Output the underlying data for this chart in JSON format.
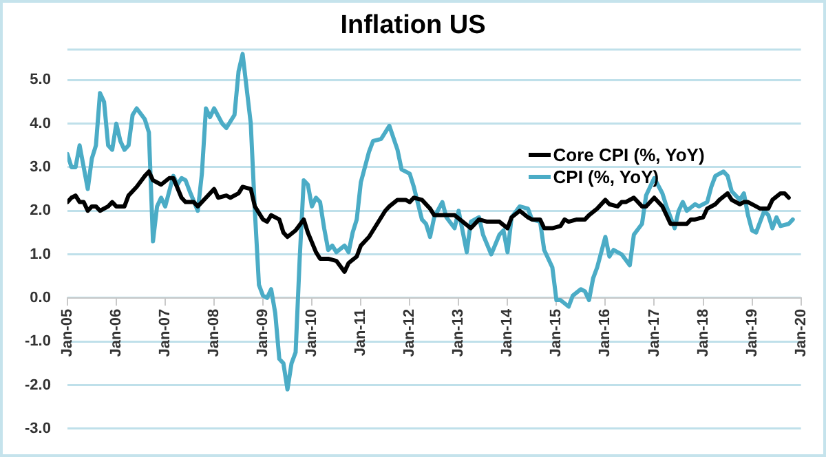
{
  "chart_data": {
    "type": "line",
    "title": "Inflation US",
    "xlim": [
      "2005-01",
      "2020-01"
    ],
    "xticks": [
      {
        "value": "2005-01",
        "label": "Jan-05"
      },
      {
        "value": "2006-01",
        "label": "Jan-06"
      },
      {
        "value": "2007-01",
        "label": "Jan-07"
      },
      {
        "value": "2008-01",
        "label": "Jan-08"
      },
      {
        "value": "2009-01",
        "label": "Jan-09"
      },
      {
        "value": "2010-01",
        "label": "Jan-10"
      },
      {
        "value": "2011-01",
        "label": "Jan-11"
      },
      {
        "value": "2012-01",
        "label": "Jan-12"
      },
      {
        "value": "2013-01",
        "label": "Jan-13"
      },
      {
        "value": "2014-01",
        "label": "Jan-14"
      },
      {
        "value": "2015-01",
        "label": "Jan-15"
      },
      {
        "value": "2016-01",
        "label": "Jan-16"
      },
      {
        "value": "2017-01",
        "label": "Jan-17"
      },
      {
        "value": "2018-01",
        "label": "Jan-18"
      },
      {
        "value": "2019-01",
        "label": "Jan-19"
      },
      {
        "value": "2020-01",
        "label": "Jan-20"
      }
    ],
    "ylim": [
      -3,
      5.7
    ],
    "yticks": [
      {
        "value": -3,
        "label": "-3.0"
      },
      {
        "value": -2,
        "label": "-2.0"
      },
      {
        "value": -1,
        "label": "-1.0"
      },
      {
        "value": 0,
        "label": "0.0"
      },
      {
        "value": 1,
        "label": "1.0"
      },
      {
        "value": 2,
        "label": "2.0"
      },
      {
        "value": 3,
        "label": "3.0"
      },
      {
        "value": 4,
        "label": "4.0"
      },
      {
        "value": 5,
        "label": "5.0"
      }
    ],
    "grid": "y",
    "legend": "top right",
    "marker": "none",
    "line_style": "solid",
    "series": [
      {
        "name": "Core CPI (%, YoY)",
        "color": "#000000",
        "x": [
          "2005-01",
          "2005-02",
          "2005-03",
          "2005-04",
          "2005-05",
          "2005-06",
          "2005-07",
          "2005-08",
          "2005-09",
          "2005-11",
          "2005-12",
          "2006-01",
          "2006-03",
          "2006-04",
          "2006-06",
          "2006-08",
          "2006-09",
          "2006-10",
          "2006-12",
          "2007-02",
          "2007-03",
          "2007-05",
          "2007-06",
          "2007-08",
          "2007-09",
          "2007-11",
          "2008-01",
          "2008-02",
          "2008-04",
          "2008-05",
          "2008-07",
          "2008-08",
          "2008-10",
          "2008-11",
          "2009-01",
          "2009-02",
          "2009-03",
          "2009-05",
          "2009-06",
          "2009-07",
          "2009-09",
          "2009-11",
          "2009-12",
          "2010-02",
          "2010-03",
          "2010-05",
          "2010-07",
          "2010-09",
          "2010-10",
          "2010-12",
          "2011-01",
          "2011-03",
          "2011-05",
          "2011-07",
          "2011-08",
          "2011-10",
          "2011-12",
          "2012-01",
          "2012-02",
          "2012-04",
          "2012-06",
          "2012-07",
          "2012-10",
          "2012-12",
          "2013-02",
          "2013-04",
          "2013-06",
          "2013-08",
          "2013-11",
          "2014-01",
          "2014-02",
          "2014-04",
          "2014-06",
          "2014-07",
          "2014-09",
          "2014-10",
          "2014-12",
          "2015-02",
          "2015-03",
          "2015-04",
          "2015-06",
          "2015-08",
          "2015-09",
          "2015-11",
          "2016-01",
          "2016-02",
          "2016-04",
          "2016-05",
          "2016-06",
          "2016-08",
          "2016-10",
          "2016-11",
          "2017-01",
          "2017-03",
          "2017-04",
          "2017-05",
          "2017-07",
          "2017-09",
          "2017-10",
          "2017-11",
          "2018-01",
          "2018-02",
          "2018-04",
          "2018-05",
          "2018-07",
          "2018-08",
          "2018-10",
          "2018-11",
          "2018-12",
          "2019-02",
          "2019-03",
          "2019-05",
          "2019-06",
          "2019-08",
          "2019-09",
          "2019-10"
        ],
        "values": [
          2.2,
          2.3,
          2.35,
          2.2,
          2.2,
          2.0,
          2.1,
          2.1,
          2.0,
          2.1,
          2.2,
          2.1,
          2.1,
          2.35,
          2.55,
          2.8,
          2.9,
          2.7,
          2.6,
          2.75,
          2.75,
          2.3,
          2.2,
          2.2,
          2.1,
          2.3,
          2.5,
          2.3,
          2.35,
          2.3,
          2.4,
          2.55,
          2.5,
          2.1,
          1.8,
          1.75,
          1.9,
          1.8,
          1.5,
          1.4,
          1.55,
          1.8,
          1.5,
          1.05,
          0.9,
          0.9,
          0.85,
          0.6,
          0.8,
          0.95,
          1.2,
          1.4,
          1.7,
          2.0,
          2.1,
          2.25,
          2.25,
          2.2,
          2.3,
          2.25,
          2.05,
          1.9,
          1.9,
          1.9,
          1.75,
          1.6,
          1.8,
          1.75,
          1.75,
          1.6,
          1.85,
          2.0,
          1.85,
          1.8,
          1.8,
          1.6,
          1.6,
          1.65,
          1.8,
          1.75,
          1.8,
          1.8,
          1.9,
          2.05,
          2.25,
          2.15,
          2.1,
          2.2,
          2.2,
          2.3,
          2.1,
          2.1,
          2.3,
          2.1,
          1.9,
          1.7,
          1.7,
          1.7,
          1.8,
          1.8,
          1.85,
          2.05,
          2.15,
          2.25,
          2.4,
          2.25,
          2.15,
          2.2,
          2.2,
          2.1,
          2.05,
          2.05,
          2.25,
          2.4,
          2.4,
          2.3
        ]
      },
      {
        "name": "CPI (%, YoY)",
        "color": "#4bacc6",
        "x": [
          "2005-01",
          "2005-02",
          "2005-03",
          "2005-04",
          "2005-06",
          "2005-07",
          "2005-08",
          "2005-09",
          "2005-10",
          "2005-11",
          "2005-12",
          "2006-01",
          "2006-02",
          "2006-03",
          "2006-04",
          "2006-05",
          "2006-06",
          "2006-08",
          "2006-09",
          "2006-10",
          "2006-11",
          "2006-12",
          "2007-01",
          "2007-03",
          "2007-04",
          "2007-05",
          "2007-06",
          "2007-07",
          "2007-09",
          "2007-10",
          "2007-11",
          "2007-12",
          "2008-01",
          "2008-03",
          "2008-04",
          "2008-06",
          "2008-07",
          "2008-08",
          "2008-09",
          "2008-10",
          "2008-11",
          "2008-12",
          "2009-01",
          "2009-02",
          "2009-03",
          "2009-04",
          "2009-05",
          "2009-06",
          "2009-07",
          "2009-08",
          "2009-09",
          "2009-10",
          "2009-11",
          "2009-12",
          "2010-01",
          "2010-02",
          "2010-03",
          "2010-04",
          "2010-05",
          "2010-06",
          "2010-07",
          "2010-09",
          "2010-10",
          "2010-11",
          "2010-12",
          "2011-01",
          "2011-03",
          "2011-04",
          "2011-06",
          "2011-08",
          "2011-10",
          "2011-11",
          "2012-01",
          "2012-02",
          "2012-04",
          "2012-05",
          "2012-06",
          "2012-07",
          "2012-09",
          "2012-10",
          "2012-12",
          "2013-01",
          "2013-03",
          "2013-04",
          "2013-06",
          "2013-07",
          "2013-09",
          "2013-11",
          "2013-12",
          "2014-01",
          "2014-02",
          "2014-04",
          "2014-06",
          "2014-07",
          "2014-09",
          "2014-10",
          "2014-12",
          "2015-01",
          "2015-02",
          "2015-04",
          "2015-05",
          "2015-07",
          "2015-08",
          "2015-09",
          "2015-10",
          "2015-11",
          "2016-01",
          "2016-02",
          "2016-03",
          "2016-05",
          "2016-07",
          "2016-08",
          "2016-10",
          "2016-11",
          "2017-01",
          "2017-03",
          "2017-04",
          "2017-06",
          "2017-07",
          "2017-08",
          "2017-09",
          "2017-11",
          "2017-12",
          "2018-02",
          "2018-03",
          "2018-04",
          "2018-06",
          "2018-07",
          "2018-08",
          "2018-10",
          "2018-11",
          "2018-12",
          "2019-01",
          "2019-02",
          "2019-04",
          "2019-05",
          "2019-06",
          "2019-07",
          "2019-08",
          "2019-10",
          "2019-11"
        ],
        "values": [
          3.3,
          3.0,
          3.0,
          3.5,
          2.5,
          3.2,
          3.5,
          4.7,
          4.5,
          3.5,
          3.4,
          4.0,
          3.6,
          3.4,
          3.5,
          4.2,
          4.35,
          4.1,
          3.8,
          1.3,
          2.1,
          2.3,
          2.1,
          2.8,
          2.6,
          2.75,
          2.7,
          2.45,
          2.0,
          2.85,
          4.35,
          4.15,
          4.35,
          4.0,
          3.9,
          4.2,
          5.2,
          5.6,
          4.8,
          4.0,
          2.0,
          0.3,
          0.05,
          0.0,
          0.2,
          -0.35,
          -1.4,
          -1.5,
          -2.1,
          -1.5,
          -1.25,
          0.9,
          2.7,
          2.6,
          2.1,
          2.3,
          2.2,
          1.6,
          1.1,
          1.2,
          1.05,
          1.2,
          1.05,
          1.5,
          1.8,
          2.65,
          3.35,
          3.6,
          3.65,
          3.95,
          3.4,
          2.95,
          2.85,
          2.55,
          1.8,
          1.7,
          1.4,
          1.85,
          2.2,
          1.85,
          1.6,
          2.0,
          1.05,
          1.75,
          1.85,
          1.45,
          1.0,
          1.45,
          1.55,
          1.05,
          1.85,
          2.1,
          2.05,
          1.8,
          1.75,
          1.1,
          0.7,
          -0.05,
          -0.05,
          -0.2,
          0.05,
          0.2,
          0.15,
          -0.05,
          0.45,
          0.7,
          1.4,
          0.95,
          1.1,
          1.0,
          0.75,
          1.45,
          1.7,
          2.35,
          2.75,
          2.4,
          2.1,
          1.6,
          2.0,
          2.2,
          2.0,
          2.15,
          2.1,
          2.2,
          2.55,
          2.8,
          2.9,
          2.8,
          2.45,
          2.25,
          2.4,
          1.9,
          1.55,
          1.5,
          2.0,
          1.9,
          1.6,
          1.85,
          1.65,
          1.7,
          1.8
        ]
      }
    ]
  }
}
